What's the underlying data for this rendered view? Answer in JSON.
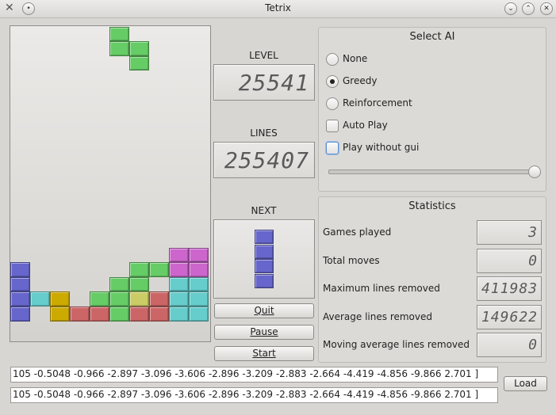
{
  "window": {
    "title": "Tetrix"
  },
  "game": {
    "level_label": "LEVEL",
    "level_value": "25541",
    "lines_label": "LINES",
    "lines_value": "255407",
    "next_label": "NEXT"
  },
  "buttons": {
    "quit": "Quit",
    "pause": "Pause",
    "start": "Start",
    "load": "Load"
  },
  "ai": {
    "title": "Select AI",
    "options": [
      {
        "label": "None",
        "selected": false
      },
      {
        "label": "Greedy",
        "selected": true
      },
      {
        "label": "Reinforcement",
        "selected": false
      }
    ],
    "auto_play": "Auto Play",
    "play_without_gui": "Play without gui",
    "slider_level": 1.0
  },
  "statistics": {
    "title": "Statistics",
    "rows": [
      {
        "label": "Games played",
        "value": "3"
      },
      {
        "label": "Total moves",
        "value": "0"
      },
      {
        "label": "Maximum lines removed",
        "value": "411983"
      },
      {
        "label": "Average lines removed",
        "value": "149622"
      },
      {
        "label": "Moving average lines removed",
        "value": "0"
      }
    ]
  },
  "weights": {
    "line1": "105 -0.5048 -0.966 -2.897 -3.096 -3.606 -2.896 -3.209 -2.883 -2.664 -4.419 -4.856 -9.866 2.701 ]",
    "line2": "105 -0.5048 -0.966 -2.897 -3.096 -3.606 -2.896 -3.209 -2.883 -2.664 -4.419 -4.856 -9.866 2.701 ]"
  },
  "colors": {
    "green": "#66cc66",
    "blue": "#6666cc",
    "teal": "#66cccc",
    "magenta": "#cc66cc",
    "orange": "#ccaa00",
    "red": "#cc6666",
    "yellow": "#cccc66"
  }
}
